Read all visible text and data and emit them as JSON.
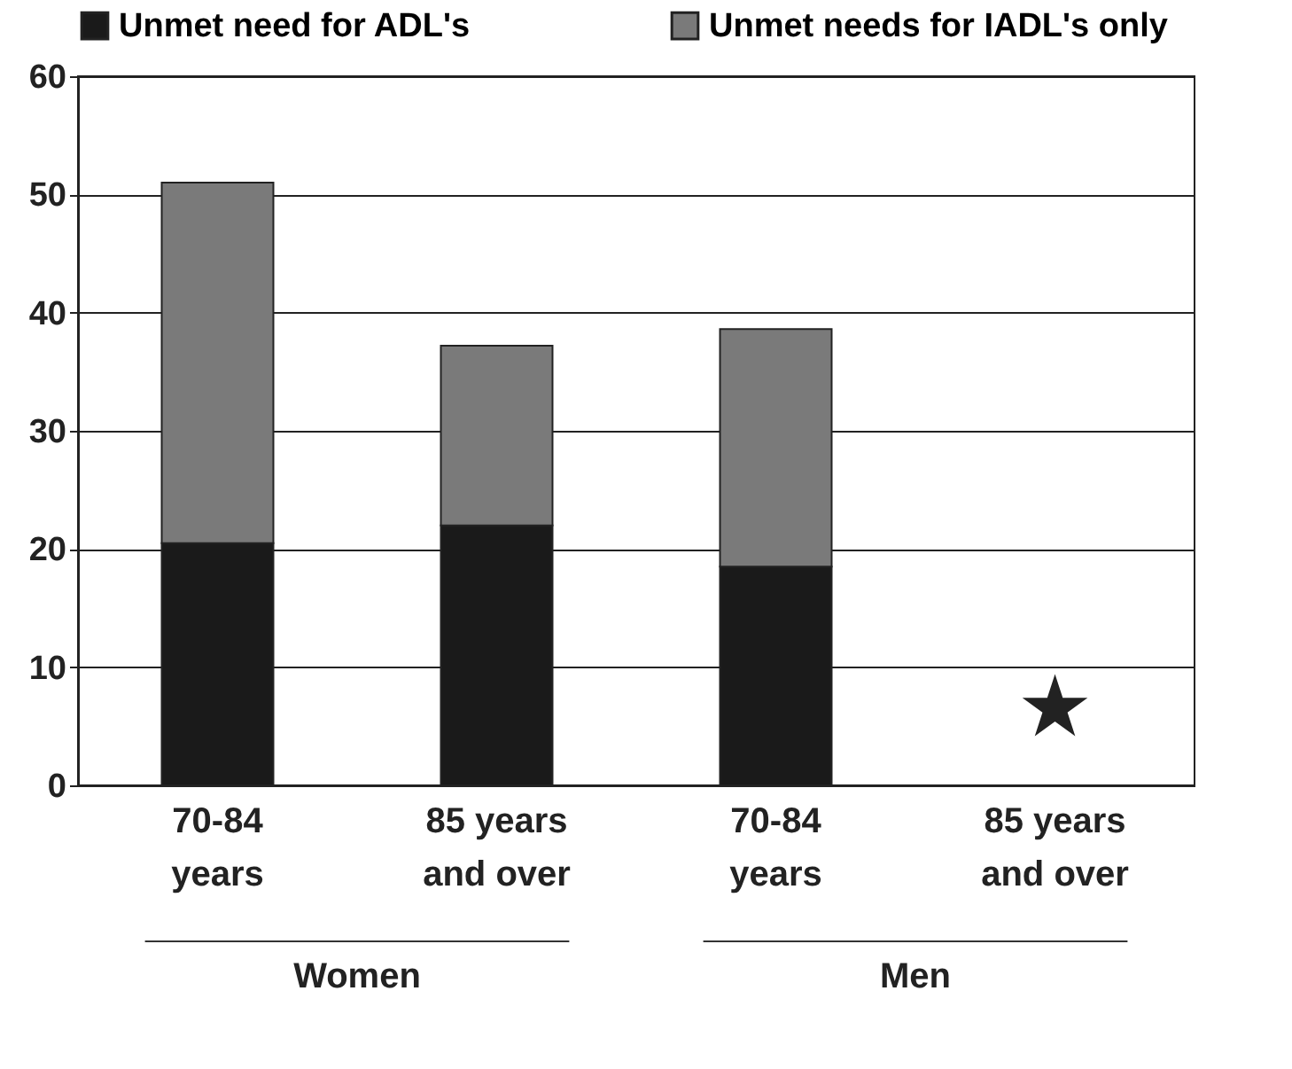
{
  "chart_data": {
    "type": "bar",
    "stacked": true,
    "categories": [
      "70-84 years",
      "85 years and over",
      "70-84 years",
      "85 years and over"
    ],
    "series": [
      {
        "name": "Unmet need for ADL's",
        "color": "#1a1a1a",
        "values": [
          20.5,
          22.0,
          18.5,
          null
        ]
      },
      {
        "name": "Unmet needs for IADL's only",
        "color": "#7a7a7a",
        "values": [
          30.5,
          15.2,
          20.1,
          null
        ]
      }
    ],
    "ylim": [
      0,
      60
    ],
    "yticks": [
      0,
      10,
      20,
      30,
      40,
      50,
      60
    ],
    "grid": "y",
    "legend": "top",
    "annotations": [
      "Women",
      "Men",
      "★"
    ]
  }
}
